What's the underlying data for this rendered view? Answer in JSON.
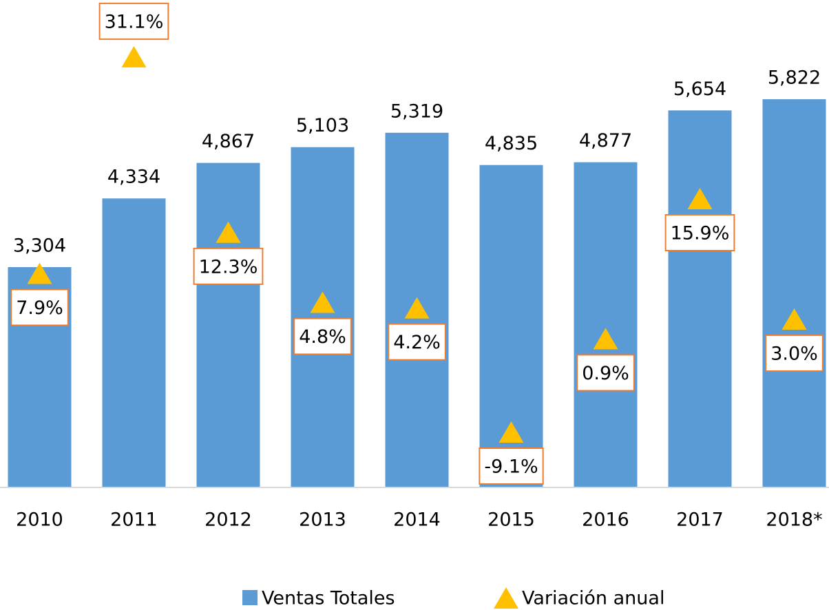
{
  "chart_data": {
    "type": "bar+marker",
    "categories": [
      "2010",
      "2011",
      "2012",
      "2013",
      "2014",
      "2015",
      "2016",
      "2017",
      "2018*"
    ],
    "series": [
      {
        "name": "Ventas Totales",
        "type": "bar",
        "color": "#5b9bd5",
        "values": [
          3304,
          4334,
          4867,
          5103,
          5319,
          4835,
          4877,
          5654,
          5822
        ],
        "value_labels": [
          "3,304",
          "4,334",
          "4,867",
          "5,103",
          "5,319",
          "4,835",
          "4,877",
          "5,654",
          "5,822"
        ]
      },
      {
        "name": "Variación anual",
        "type": "marker",
        "axis": "y2",
        "color": "#ffc000",
        "values": [
          7.9,
          31.1,
          12.3,
          4.8,
          4.2,
          -9.1,
          0.9,
          15.9,
          3.0
        ],
        "value_labels": [
          "7.9%",
          "31.1%",
          "12.3%",
          "4.8%",
          "4.2%",
          "-9.1%",
          "0.9%",
          "15.9%",
          "3.0%"
        ]
      }
    ],
    "ylim": [
      0,
      7000
    ],
    "y2lim": [
      -15,
      35
    ],
    "legend": "bottom"
  }
}
